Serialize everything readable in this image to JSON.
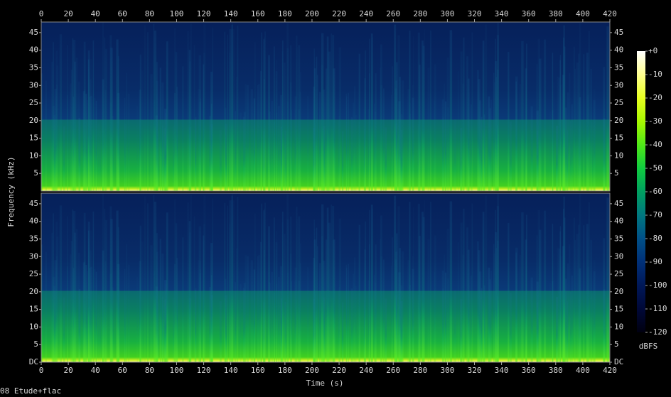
{
  "chart_data": {
    "type": "spectrogram",
    "title": "08 Etude+flac",
    "xlabel": "Time (s)",
    "ylabel": "Frequency (kHz)",
    "xlim": [
      0,
      420
    ],
    "xticks": [
      0,
      20,
      40,
      60,
      80,
      100,
      120,
      140,
      160,
      180,
      200,
      220,
      240,
      260,
      280,
      300,
      320,
      340,
      360,
      380,
      400,
      420
    ],
    "channels": [
      {
        "ylim": [
          0,
          48
        ],
        "yticks": [
          5,
          10,
          15,
          20,
          25,
          30,
          35,
          40,
          45
        ]
      },
      {
        "ylim": [
          0,
          48
        ],
        "yticks": [
          {
            "value": 0,
            "label": "DC"
          },
          5,
          10,
          15,
          20,
          25,
          30,
          35,
          40,
          45
        ]
      }
    ],
    "colorbar": {
      "label": "dBFS",
      "lim": [
        -120,
        0
      ],
      "ticks": [
        {
          "value": 0,
          "label": "+0"
        },
        -10,
        -20,
        -30,
        -40,
        -50,
        -60,
        -70,
        -80,
        -90,
        -100,
        -110,
        -120
      ],
      "colors": [
        "#ffffff",
        "#ffff90",
        "#e8ff20",
        "#a8f800",
        "#50e818",
        "#10cc40",
        "#00a060",
        "#007880",
        "#005088",
        "#003078",
        "#001858",
        "#000838",
        "#000010"
      ]
    }
  }
}
